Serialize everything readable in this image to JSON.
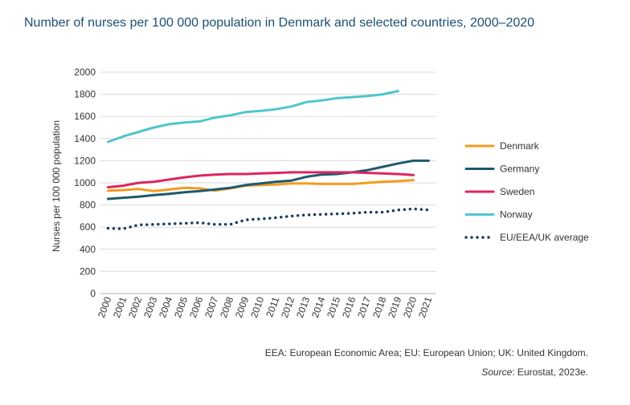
{
  "title": "Number of nurses per 100 000 population in Denmark and selected countries, 2000–2020",
  "notes": {
    "abbreviations": "EEA: European Economic Area; EU: European Union; UK: United Kingdom.",
    "source_label": "Source",
    "source_text": ": Eurostat, 2023e."
  },
  "chart_data": {
    "type": "line",
    "ylabel": "Nurses per 100 000 population",
    "xlabel": "",
    "ylim": [
      0,
      2000
    ],
    "yticks": [
      0,
      200,
      400,
      600,
      800,
      1000,
      1200,
      1400,
      1600,
      1800,
      2000
    ],
    "grid": true,
    "legend_position": "right",
    "x": [
      "2000",
      "2001",
      "2002",
      "2003",
      "2004",
      "2005",
      "2006",
      "2007",
      "2008",
      "2009",
      "2010",
      "2011",
      "2012",
      "2013",
      "2014",
      "2015",
      "2016",
      "2017",
      "2018",
      "2019",
      "2020",
      "2021"
    ],
    "series": [
      {
        "name": "Denmark",
        "color": "#f39c1f",
        "style": "solid",
        "values": [
          930,
          935,
          945,
          925,
          940,
          955,
          950,
          930,
          950,
          975,
          980,
          985,
          995,
          995,
          990,
          990,
          990,
          1000,
          1010,
          1015,
          1025,
          null
        ]
      },
      {
        "name": "Germany",
        "color": "#1e5a6e",
        "style": "solid",
        "values": [
          855,
          865,
          875,
          890,
          900,
          915,
          925,
          940,
          955,
          980,
          995,
          1010,
          1020,
          1055,
          1075,
          1080,
          1095,
          1115,
          1145,
          1175,
          1200,
          1200
        ]
      },
      {
        "name": "Sweden",
        "color": "#e0245e",
        "style": "solid",
        "values": [
          960,
          975,
          1000,
          1010,
          1030,
          1050,
          1065,
          1075,
          1080,
          1080,
          1085,
          1090,
          1095,
          1095,
          1095,
          1095,
          1095,
          1090,
          1085,
          1080,
          1070,
          null
        ]
      },
      {
        "name": "Norway",
        "color": "#4fc6cc",
        "style": "solid",
        "values": [
          1370,
          1420,
          1460,
          1500,
          1530,
          1545,
          1555,
          1590,
          1610,
          1640,
          1650,
          1665,
          1690,
          1730,
          1745,
          1765,
          1775,
          1785,
          1800,
          1830,
          null,
          null
        ]
      },
      {
        "name": "EU/EEA/UK average",
        "color": "#1b3a5c",
        "style": "dotted",
        "values": [
          590,
          585,
          620,
          625,
          630,
          635,
          640,
          625,
          625,
          665,
          675,
          685,
          700,
          710,
          715,
          720,
          725,
          735,
          735,
          755,
          765,
          755
        ]
      }
    ]
  }
}
